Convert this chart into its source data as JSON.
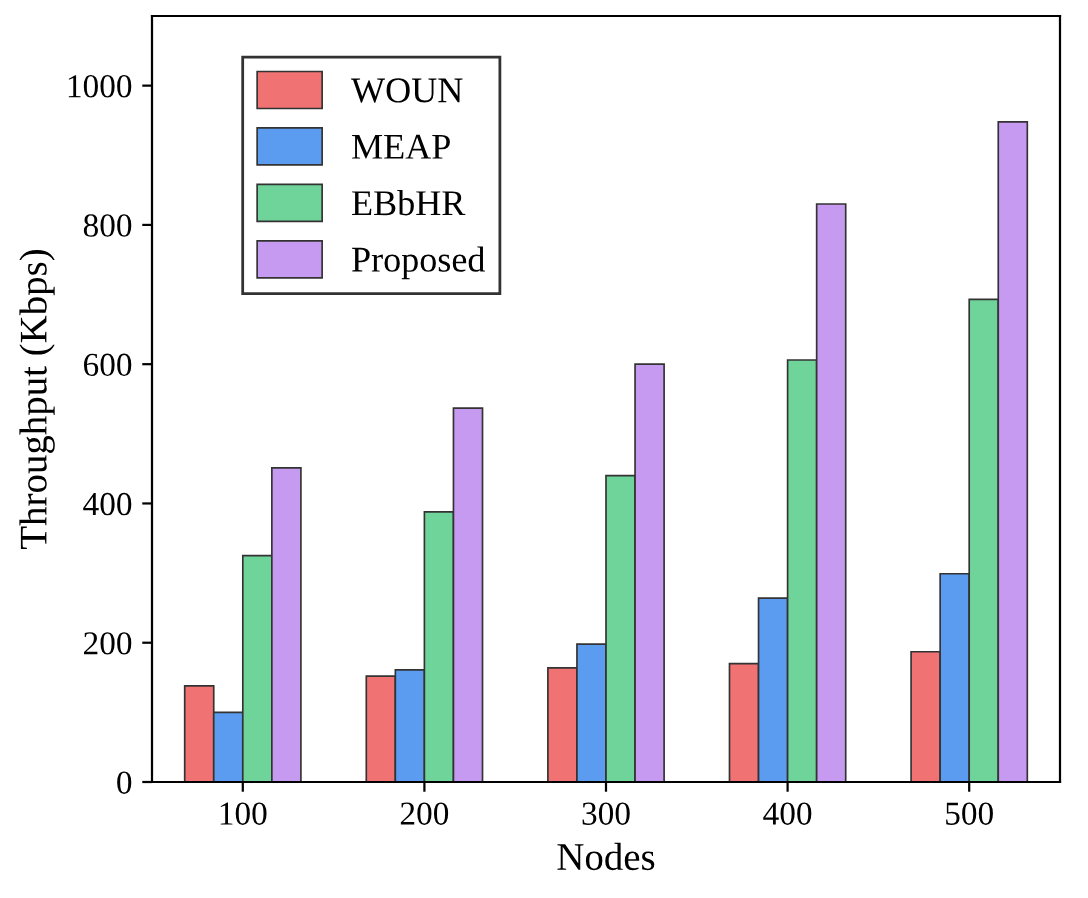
{
  "chart_data": {
    "type": "bar",
    "xlabel": "Nodes",
    "ylabel": "Throughput (Kbps)",
    "categories": [
      "100",
      "200",
      "300",
      "400",
      "500"
    ],
    "series": [
      {
        "name": "WOUN",
        "color": "#f07272",
        "values": [
          138,
          152,
          164,
          170,
          187
        ]
      },
      {
        "name": "MEAP",
        "color": "#5b9cf0",
        "values": [
          100,
          161,
          198,
          264,
          299
        ]
      },
      {
        "name": "EBbHR",
        "color": "#6fd49a",
        "values": [
          325,
          388,
          440,
          606,
          693
        ]
      },
      {
        "name": "Proposed",
        "color": "#c69af0",
        "values": [
          451,
          537,
          600,
          830,
          948
        ]
      }
    ],
    "ylim": [
      0,
      1100
    ],
    "yticks": [
      0,
      200,
      400,
      600,
      800,
      1000
    ],
    "grid": false,
    "legend": "top left"
  }
}
